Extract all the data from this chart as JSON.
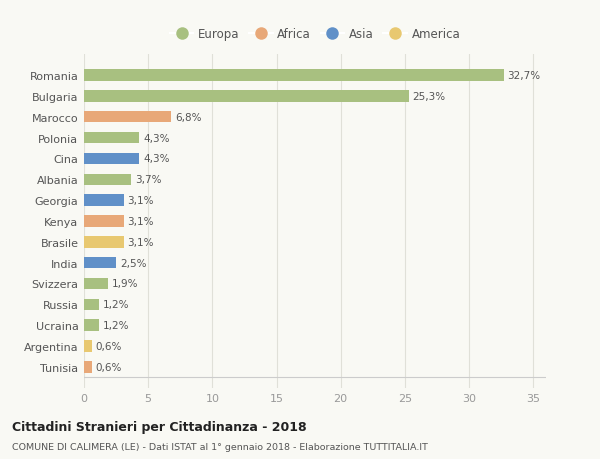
{
  "countries": [
    "Romania",
    "Bulgaria",
    "Marocco",
    "Polonia",
    "Cina",
    "Albania",
    "Georgia",
    "Kenya",
    "Brasile",
    "India",
    "Svizzera",
    "Russia",
    "Ucraina",
    "Argentina",
    "Tunisia"
  ],
  "values": [
    32.7,
    25.3,
    6.8,
    4.3,
    4.3,
    3.7,
    3.1,
    3.1,
    3.1,
    2.5,
    1.9,
    1.2,
    1.2,
    0.6,
    0.6
  ],
  "labels": [
    "32,7%",
    "25,3%",
    "6,8%",
    "4,3%",
    "4,3%",
    "3,7%",
    "3,1%",
    "3,1%",
    "3,1%",
    "2,5%",
    "1,9%",
    "1,2%",
    "1,2%",
    "0,6%",
    "0,6%"
  ],
  "continents": [
    "Europa",
    "Europa",
    "Africa",
    "Europa",
    "Asia",
    "Europa",
    "Asia",
    "Africa",
    "America",
    "Asia",
    "Europa",
    "Europa",
    "Europa",
    "America",
    "Africa"
  ],
  "colors": {
    "Europa": "#a8c080",
    "Africa": "#e8a878",
    "Asia": "#6090c8",
    "America": "#e8c870"
  },
  "legend_items": [
    "Europa",
    "Africa",
    "Asia",
    "America"
  ],
  "xlim": [
    0,
    36
  ],
  "xticks": [
    0,
    5,
    10,
    15,
    20,
    25,
    30,
    35
  ],
  "title": "Cittadini Stranieri per Cittadinanza - 2018",
  "subtitle": "COMUNE DI CALIMERA (LE) - Dati ISTAT al 1° gennaio 2018 - Elaborazione TUTTITALIA.IT",
  "bg_color": "#f9f9f4",
  "grid_color": "#e0e0d8"
}
